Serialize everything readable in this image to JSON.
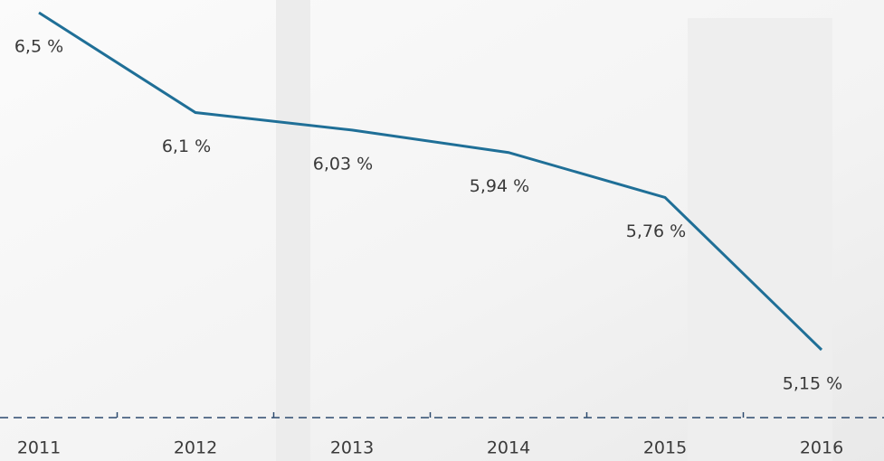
{
  "chart_data": {
    "type": "line",
    "categories": [
      "2011",
      "2012",
      "2013",
      "2014",
      "2015",
      "2016"
    ],
    "series": [
      {
        "color": "#1f6f97",
        "values": [
          6.5,
          6.1,
          6.03,
          5.94,
          5.76,
          5.15
        ],
        "value_labels": [
          "6,5 %",
          "6,1 %",
          "6,03 %",
          "5,94 %",
          "5,76 %",
          "5,15 %"
        ]
      }
    ]
  }
}
